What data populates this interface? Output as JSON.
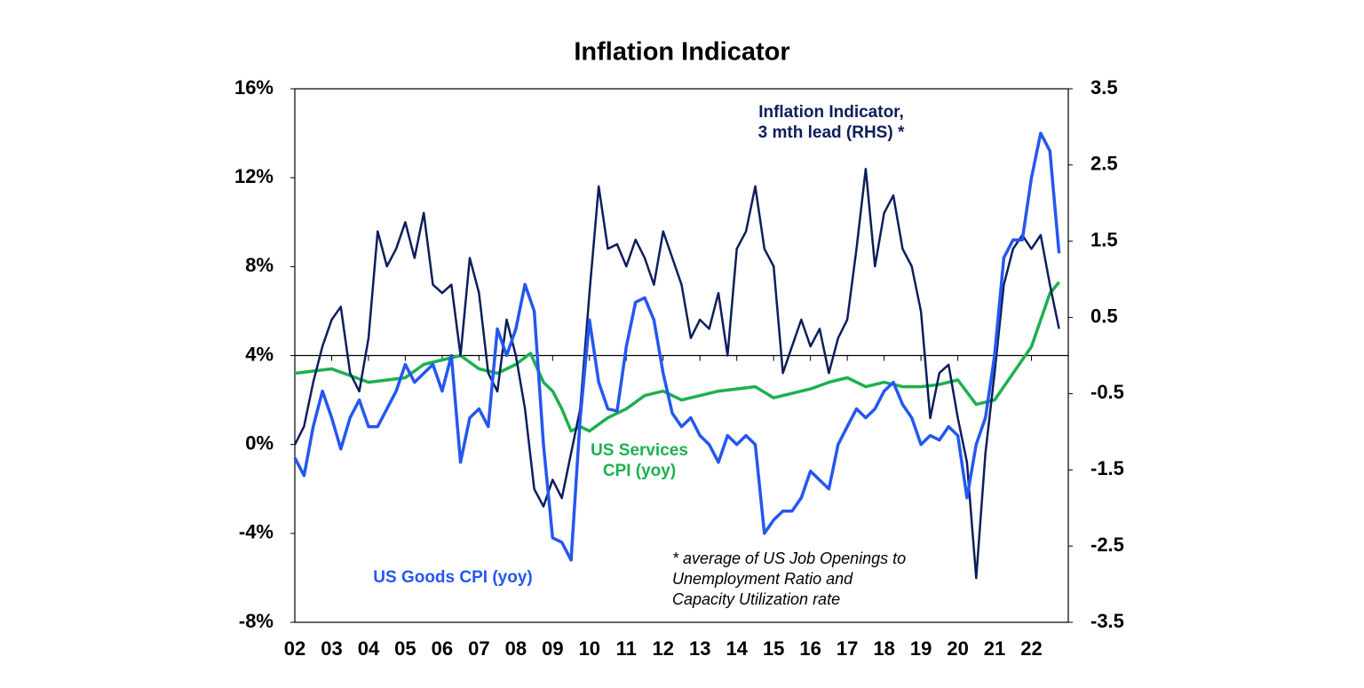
{
  "chart_data": {
    "type": "line",
    "title": "Inflation Indicator",
    "xlim": [
      2002,
      2023
    ],
    "xticks": [
      {
        "value": 2002,
        "label": "02"
      },
      {
        "value": 2003,
        "label": "03"
      },
      {
        "value": 2004,
        "label": "04"
      },
      {
        "value": 2005,
        "label": "05"
      },
      {
        "value": 2006,
        "label": "06"
      },
      {
        "value": 2007,
        "label": "07"
      },
      {
        "value": 2008,
        "label": "08"
      },
      {
        "value": 2009,
        "label": "09"
      },
      {
        "value": 2010,
        "label": "10"
      },
      {
        "value": 2011,
        "label": "11"
      },
      {
        "value": 2012,
        "label": "12"
      },
      {
        "value": 2013,
        "label": "13"
      },
      {
        "value": 2014,
        "label": "14"
      },
      {
        "value": 2015,
        "label": "15"
      },
      {
        "value": 2016,
        "label": "16"
      },
      {
        "value": 2017,
        "label": "17"
      },
      {
        "value": 2018,
        "label": "18"
      },
      {
        "value": 2019,
        "label": "19"
      },
      {
        "value": 2020,
        "label": "20"
      },
      {
        "value": 2021,
        "label": "21"
      },
      {
        "value": 2022,
        "label": "22"
      }
    ],
    "ylim": [
      -8,
      16
    ],
    "yticks": [
      {
        "value": 16,
        "label": "16%"
      },
      {
        "value": 12,
        "label": "12%"
      },
      {
        "value": 8,
        "label": "8%"
      },
      {
        "value": 4,
        "label": "4%"
      },
      {
        "value": 0,
        "label": "0%"
      },
      {
        "value": -4,
        "label": "-4%"
      },
      {
        "value": -8,
        "label": "-8%"
      }
    ],
    "y2lim": [
      -3.5,
      3.5
    ],
    "y2ticks": [
      3.5,
      2.5,
      1.5,
      0.5,
      -0.5,
      -1.5,
      -2.5,
      -3.5
    ],
    "x": [
      2002,
      2002.25,
      2002.5,
      2002.75,
      2003,
      2003.25,
      2003.5,
      2003.75,
      2004,
      2004.25,
      2004.5,
      2004.75,
      2005,
      2005.25,
      2005.5,
      2005.75,
      2006,
      2006.25,
      2006.5,
      2006.75,
      2007,
      2007.25,
      2007.5,
      2007.75,
      2008,
      2008.25,
      2008.5,
      2008.75,
      2009,
      2009.25,
      2009.5,
      2009.75,
      2010,
      2010.25,
      2010.5,
      2010.75,
      2011,
      2011.25,
      2011.5,
      2011.75,
      2012,
      2012.25,
      2012.5,
      2012.75,
      2013,
      2013.25,
      2013.5,
      2013.75,
      2014,
      2014.25,
      2014.5,
      2014.75,
      2015,
      2015.25,
      2015.5,
      2015.75,
      2016,
      2016.25,
      2016.5,
      2016.75,
      2017,
      2017.25,
      2017.5,
      2017.75,
      2018,
      2018.25,
      2018.5,
      2018.75,
      2019,
      2019.25,
      2019.5,
      2019.75,
      2020,
      2020.25,
      2020.5,
      2020.75,
      2021,
      2021.25,
      2021.5,
      2021.75,
      2022,
      2022.25,
      2022.5,
      2022.75
    ],
    "series": [
      {
        "label": [
          "US Goods CPI (yoy)"
        ],
        "color": "#2457f0",
        "values": [
          -0.6,
          -1.4,
          0.8,
          2.4,
          1.2,
          -0.2,
          1.2,
          2,
          0.8,
          0.8,
          1.6,
          2.4,
          3.6,
          2.8,
          3.2,
          3.6,
          2.4,
          4,
          -0.8,
          1.2,
          1.6,
          0.8,
          5.2,
          4,
          5.2,
          7.2,
          6,
          0,
          -4.2,
          -4.4,
          -5.2,
          1.2,
          5.6,
          2.8,
          1.6,
          1.5,
          4.4,
          6.4,
          6.6,
          5.6,
          3.2,
          1.4,
          0.8,
          1.2,
          0.4,
          0,
          -0.8,
          0.4,
          0,
          0.4,
          0,
          -4,
          -3.4,
          -3,
          -3,
          -2.4,
          -1.2,
          -1.6,
          -2,
          0,
          0.8,
          1.6,
          1.2,
          1.6,
          2.4,
          2.8,
          1.8,
          1.2,
          0,
          0.4,
          0.2,
          0.8,
          0.4,
          -2.4,
          0,
          1.2,
          4,
          8.4,
          9.2,
          9.2,
          12,
          14,
          13.2,
          8.6
        ]
      },
      {
        "label": [
          "US Services",
          "CPI (yoy)"
        ],
        "color": "#1db04f",
        "x": [
          2002,
          2003,
          2004,
          2005,
          2005.5,
          2006,
          2006.5,
          2007,
          2007.5,
          2008,
          2008.4,
          2008.75,
          2009,
          2009.25,
          2009.5,
          2009.75,
          2010,
          2010.5,
          2011,
          2011.5,
          2012,
          2012.5,
          2013,
          2013.5,
          2014,
          2014.5,
          2015,
          2015.5,
          2016,
          2016.5,
          2017,
          2017.5,
          2018,
          2018.5,
          2019,
          2019.5,
          2020,
          2020.5,
          2021,
          2021.5,
          2022,
          2022.25,
          2022.5,
          2022.75
        ],
        "values": [
          3.2,
          3.4,
          2.8,
          3,
          3.6,
          3.8,
          4,
          3.4,
          3.2,
          3.6,
          4.1,
          2.8,
          2.4,
          1.6,
          0.6,
          0.8,
          0.6,
          1.2,
          1.6,
          2.2,
          2.4,
          2,
          2.2,
          2.4,
          2.5,
          2.6,
          2.1,
          2.3,
          2.5,
          2.8,
          3,
          2.6,
          2.8,
          2.6,
          2.6,
          2.7,
          2.9,
          1.8,
          2,
          3.2,
          4.4,
          5.6,
          6.8,
          7.3
        ]
      },
      {
        "label": [
          "Inflation Indicator,",
          "3 mth lead (RHS) *"
        ],
        "color": "#0c1e5b",
        "axis": "y2",
        "values": [
          -1.17,
          -0.93,
          -0.35,
          0.12,
          0.47,
          0.64,
          -0.23,
          -0.47,
          0.23,
          1.63,
          1.17,
          1.4,
          1.75,
          1.28,
          1.87,
          0.93,
          0.82,
          0.93,
          0,
          1.28,
          0.82,
          -0.23,
          -0.47,
          0.47,
          0,
          -0.7,
          -1.75,
          -1.98,
          -1.63,
          -1.87,
          -1.28,
          -0.7,
          0.82,
          2.22,
          1.4,
          1.46,
          1.17,
          1.52,
          1.28,
          0.93,
          1.63,
          1.28,
          0.93,
          0.23,
          0.47,
          0.35,
          0.82,
          0,
          1.4,
          1.63,
          2.22,
          1.4,
          1.17,
          -0.23,
          0.12,
          0.47,
          0.12,
          0.35,
          -0.23,
          0.23,
          0.47,
          1.4,
          2.45,
          1.17,
          1.87,
          2.1,
          1.4,
          1.17,
          0.58,
          -0.82,
          -0.23,
          -0.12,
          -0.82,
          -1.4,
          -2.92,
          -1.28,
          -0.23,
          0.93,
          1.4,
          1.58,
          1.4,
          1.58,
          0.93,
          0.35
        ]
      }
    ],
    "footnote": [
      "* average of US Job Openings to",
      "Unemployment Ratio and",
      "Capacity Utilization rate"
    ]
  }
}
